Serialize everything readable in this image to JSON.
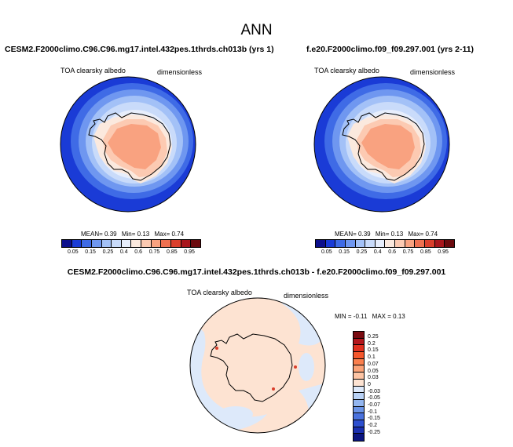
{
  "figure": {
    "title": "ANN"
  },
  "panels": [
    {
      "case": "CESM2.F2000climo.C96.C96.mg17.intel.432pes.1thrds.ch013b (yrs 1)",
      "variable": "TOA clearsky albedo",
      "units": "dimensionless",
      "stats": {
        "mean_label": "MEAN=",
        "mean": "0.39",
        "min_label": "Min=",
        "min": "0.13",
        "max_label": "Max=",
        "max": "0.74"
      }
    },
    {
      "case": "f.e20.F2000climo.f09_f09.297.001 (yrs 2-11)",
      "variable": "TOA clearsky albedo",
      "units": "dimensionless",
      "stats": {
        "mean_label": "MEAN=",
        "mean": "0.39",
        "min_label": "Min=",
        "min": "0.13",
        "max_label": "Max=",
        "max": "0.74"
      }
    }
  ],
  "colorbar_main": {
    "levels": [
      "0.05",
      "0.15",
      "0.25",
      "0.4",
      "0.6",
      "0.75",
      "0.85",
      "0.95"
    ],
    "colors": [
      "#0c0f8c",
      "#1a3bd6",
      "#3f6be6",
      "#6f97f0",
      "#a3c1f7",
      "#c9dbfa",
      "#e7eefc",
      "#fbe9de",
      "#fccab2",
      "#f9a280",
      "#ee7050",
      "#d93e2b",
      "#a8161c",
      "#6b0a0e"
    ]
  },
  "diff_panel": {
    "case": "CESM2.F2000climo.C96.C96.mg17.intel.432pes.1thrds.ch013b - f.e20.F2000climo.f09_f09.297.001",
    "variable": "TOA clearsky albedo",
    "units": "dimensionless",
    "stats": {
      "min_label": "MIN =",
      "min": "-0.11",
      "max_label": "MAX =",
      "max": "0.13"
    }
  },
  "colorbar_diff": {
    "levels": [
      "0.25",
      "0.2",
      "0.15",
      "0.1",
      "0.07",
      "0.05",
      "0.03",
      "0",
      "-0.03",
      "-0.05",
      "-0.07",
      "-0.1",
      "-0.15",
      "-0.2",
      "-0.25"
    ],
    "colors": [
      "#7a0b10",
      "#b3161c",
      "#e0301f",
      "#f5572c",
      "#fa7f4d",
      "#fba277",
      "#fdc4a4",
      "#fde3d2",
      "#dde9fa",
      "#b9d2f6",
      "#93b6f0",
      "#6c95e8",
      "#4a72de",
      "#2d4fcf",
      "#1a2fb0",
      "#0a1480"
    ]
  }
}
